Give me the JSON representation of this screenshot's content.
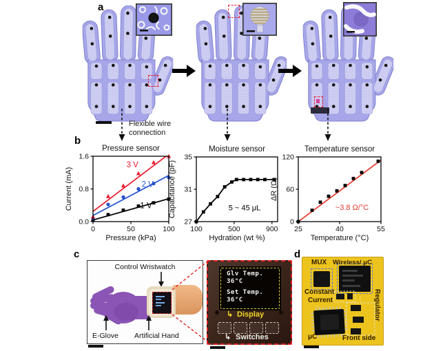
{
  "figure": {
    "panel_a": {
      "letter": "a",
      "flexible_wire_line1": "Flexible wire",
      "flexible_wire_line2": "connection"
    },
    "panel_b": {
      "letter": "b"
    },
    "panel_c": {
      "letter": "c",
      "control_wristwatch_label": "Control Wristwatch",
      "eglove_label": "E-Glove",
      "artificial_hand_label": "Artificial Hand",
      "display": {
        "glove_temp_label": "Glv Temp.",
        "glove_temp_value": "36°C",
        "set_temp_label": "Set Temp.",
        "set_temp_value": "36°C"
      },
      "display_label": "Display",
      "display_arrow": "↳",
      "switches_label": "Switches",
      "switches_arrow": "↳"
    },
    "panel_d": {
      "letter": "d",
      "labels": {
        "mux": "MUX",
        "wireless": "Wireless/ μC",
        "constant_line1": "Constant",
        "constant_line2": "Current",
        "regulator": "Regulator",
        "microcontroller": "μC",
        "front_side": "Front side"
      }
    }
  },
  "colors": {
    "glove": "#a6a6e8",
    "glove_stroke": "#8080d0",
    "accent_red": "#e8192c",
    "series_blue": "#2353cc",
    "fit_red": "#e8362c",
    "pcb_yellow": "#edc41e",
    "display_yellow": "#f0d428",
    "hand_purple": "#8a55b4"
  },
  "chart_data": [
    {
      "type": "scatter",
      "title": "Pressure sensor",
      "xlabel": "Pressure (kPa)",
      "ylabel": "Current (mA)",
      "xlim": [
        0,
        100
      ],
      "ylim": [
        0,
        1.6
      ],
      "xticks": [
        0,
        50,
        100
      ],
      "xtick_labels": [
        "0",
        "50",
        "100"
      ],
      "yticks": [
        0,
        0.8,
        1.6
      ],
      "ytick_labels": [
        "0.0",
        "0.8",
        "1.6"
      ],
      "grid": false,
      "legend": "inline labels",
      "series": [
        {
          "name": "1 V",
          "color": "#000000",
          "marker": "square",
          "x": [
            0,
            20,
            40,
            60,
            80,
            100
          ],
          "y": [
            0.05,
            0.17,
            0.28,
            0.38,
            0.46,
            0.55
          ],
          "fit": [
            [
              0,
              0.04
            ],
            [
              100,
              0.56
            ]
          ],
          "label_pos": [
            70,
            0.33
          ]
        },
        {
          "name": "2 V",
          "color": "#2353cc",
          "marker": "circle",
          "x": [
            0,
            20,
            40,
            60,
            80,
            100
          ],
          "y": [
            0.08,
            0.42,
            0.6,
            0.8,
            0.93,
            1.08
          ],
          "fit": [
            [
              0,
              0.15
            ],
            [
              100,
              1.13
            ]
          ],
          "label_pos": [
            72,
            0.85
          ]
        },
        {
          "name": "3 V",
          "color": "#e8192c",
          "marker": "triangle",
          "x": [
            0,
            20,
            40,
            60,
            80,
            100
          ],
          "y": [
            0.12,
            0.62,
            0.88,
            1.18,
            1.45,
            1.6
          ],
          "fit": [
            [
              0,
              0.25
            ],
            [
              105,
              1.72
            ]
          ],
          "label_pos": [
            52,
            1.33
          ]
        }
      ],
      "annotations": []
    },
    {
      "type": "line",
      "title": "Moisture sensor",
      "xlabel": "Hydration (wt %)",
      "ylabel": "Capacitance (pF)",
      "xlim": [
        100,
        960
      ],
      "ylim": [
        27,
        35
      ],
      "xticks": [
        100,
        500,
        900
      ],
      "xtick_labels": [
        "100",
        "500",
        "900"
      ],
      "yticks": [
        27,
        31,
        35
      ],
      "ytick_labels": [
        "27",
        "31",
        "35"
      ],
      "grid": false,
      "series": [
        {
          "name": "capacitance",
          "color": "#000000",
          "marker": "square",
          "connect": true,
          "x": [
            100,
            175,
            250,
            325,
            400,
            475,
            525,
            600,
            675,
            750,
            825,
            925
          ],
          "y": [
            27.0,
            28.2,
            29.2,
            30.1,
            31.3,
            31.9,
            32.2,
            32.2,
            32.2,
            32.2,
            32.2,
            32.2
          ]
        }
      ],
      "annotations": [
        {
          "text": "5 ~ 45 μL",
          "x": 610,
          "y": 28.4,
          "color": "#000000"
        }
      ]
    },
    {
      "type": "scatter",
      "title": "Temperature sensor",
      "xlabel": "Temperature (°C)",
      "ylabel": "ΔR (Ω)",
      "xlim": [
        25,
        55
      ],
      "ylim": [
        0,
        120
      ],
      "xticks": [
        25,
        40,
        55
      ],
      "xtick_labels": [
        "25",
        "40",
        "55"
      ],
      "yticks": [
        0,
        60,
        120
      ],
      "ytick_labels": [
        "0",
        "60",
        "120"
      ],
      "grid": false,
      "series": [
        {
          "name": "resistance",
          "color": "#000000",
          "marker": "square",
          "x": [
            25,
            30,
            33,
            36,
            39,
            42,
            45,
            48,
            54
          ],
          "y": [
            0,
            21,
            36,
            47,
            57,
            67,
            80,
            91,
            112
          ],
          "fit": [
            [
              25,
              0
            ],
            [
              55,
              114
            ]
          ],
          "fit_color": "#e8362c"
        }
      ],
      "annotations": [
        {
          "text": "~3.8 Ω/°C",
          "x": 44.5,
          "y": 22,
          "color": "#e8362c"
        }
      ]
    }
  ]
}
